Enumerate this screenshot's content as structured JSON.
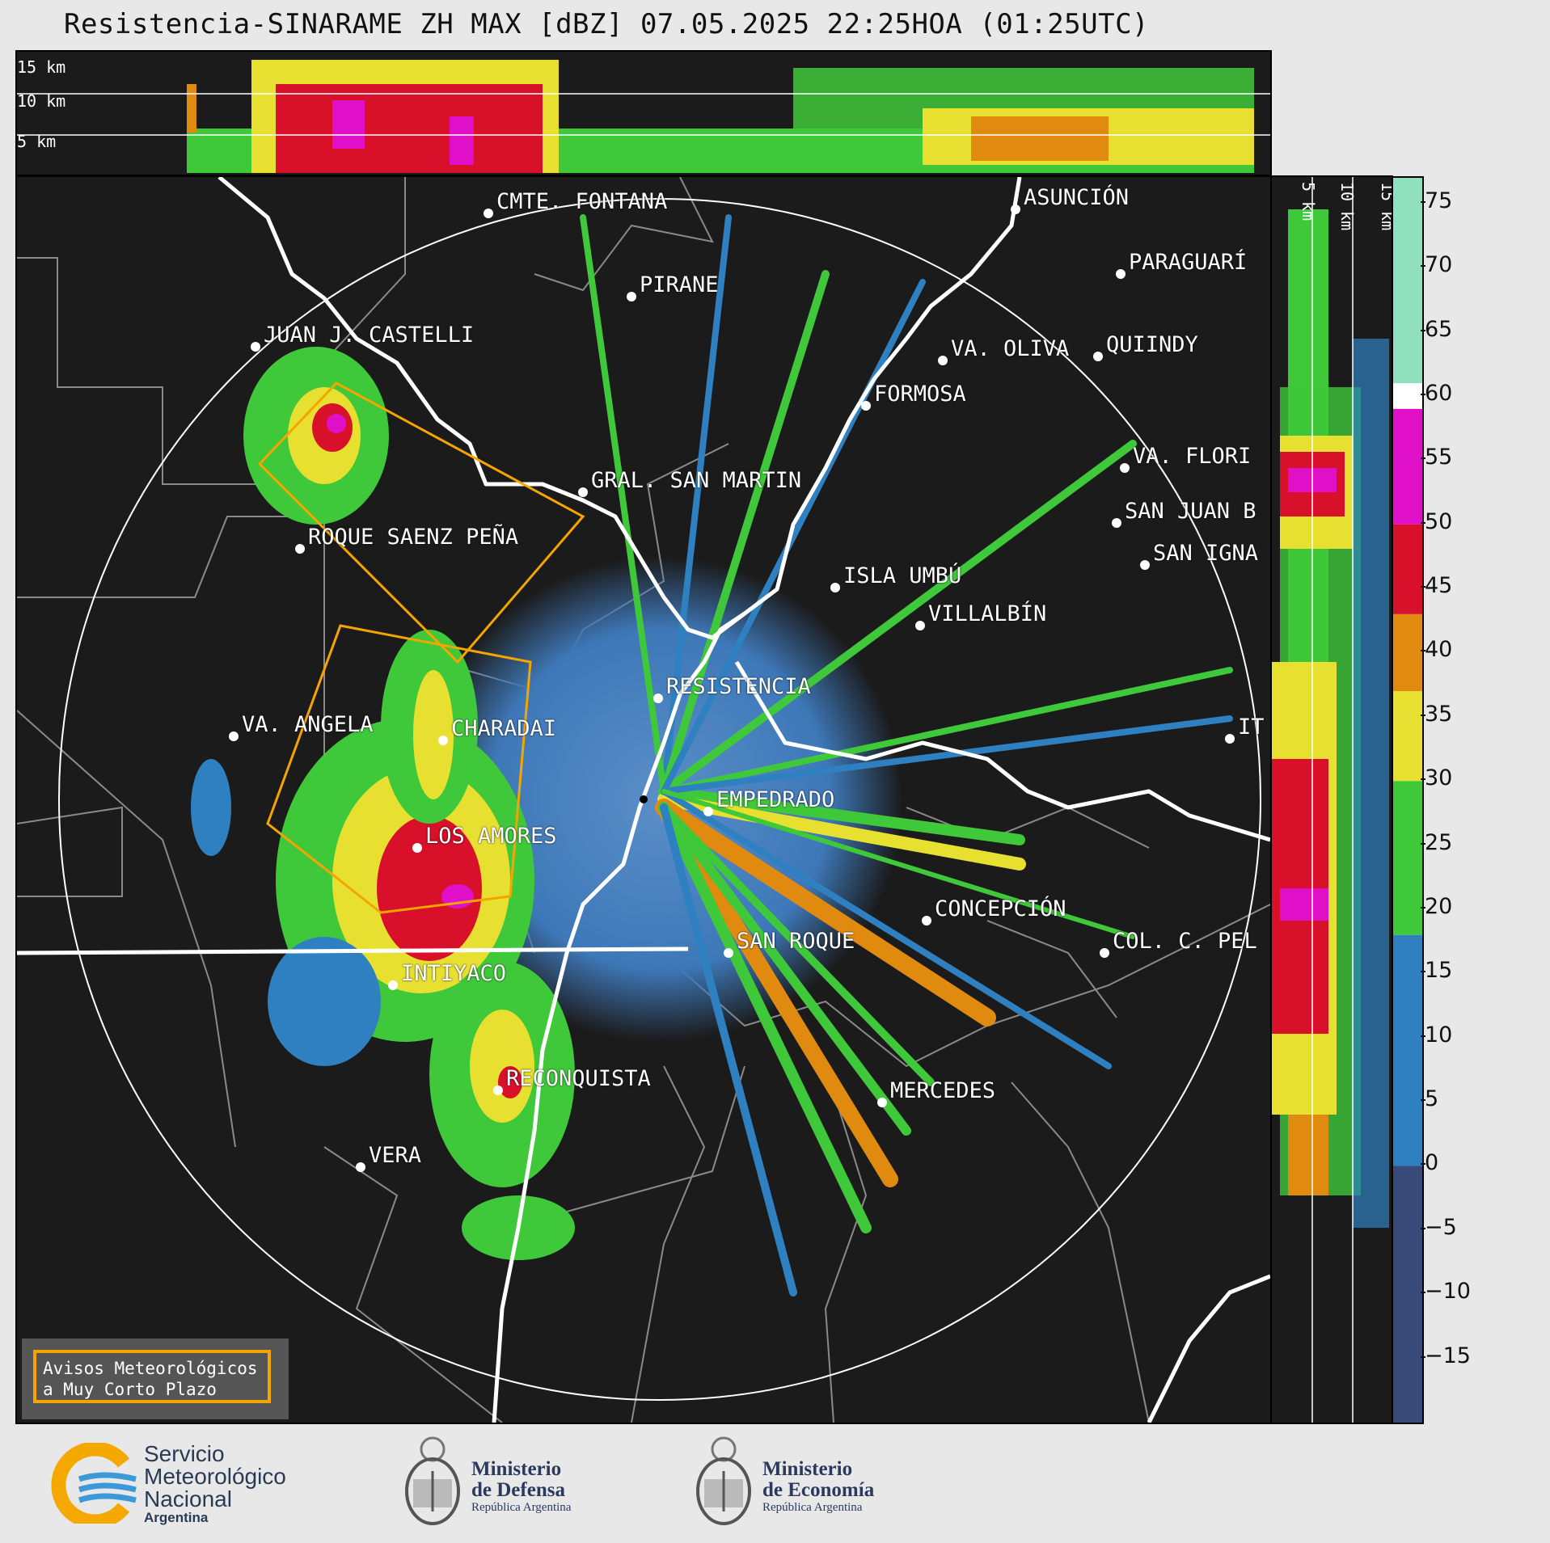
{
  "title": "Resistencia-SINARAME ZH MAX [dBZ] 07.05.2025 22:25HOA (01:25UTC)",
  "profile_top": {
    "height_labels": [
      "15 km",
      "10 km",
      "5 km"
    ]
  },
  "profile_right": {
    "height_labels": [
      "5 km",
      "10 km",
      "15 km"
    ]
  },
  "cities": [
    {
      "name": "CMTE. FONTANA"
    },
    {
      "name": "ASUNCIÓN"
    },
    {
      "name": "PARAGUARÍ"
    },
    {
      "name": "PIRANE"
    },
    {
      "name": "JUAN J. CASTELLI"
    },
    {
      "name": "VA. OLIVA"
    },
    {
      "name": "QUIINDY"
    },
    {
      "name": "FORMOSA"
    },
    {
      "name": "VA. FLORI"
    },
    {
      "name": "GRAL. SAN MARTIN"
    },
    {
      "name": "SAN JUAN B"
    },
    {
      "name": "ROQUE SAENZ PEÑA"
    },
    {
      "name": "SAN IGNA"
    },
    {
      "name": "ISLA UMBÚ"
    },
    {
      "name": "VILLALBÍN"
    },
    {
      "name": "RESISTENCIA"
    },
    {
      "name": "VA. ANGELA"
    },
    {
      "name": "CHARADAI"
    },
    {
      "name": "IT"
    },
    {
      "name": "EMPEDRADO"
    },
    {
      "name": "LOS AMORES"
    },
    {
      "name": "CONCEPCIÓN"
    },
    {
      "name": "SAN ROQUE"
    },
    {
      "name": "COL. C. PEL"
    },
    {
      "name": "INTIYACO"
    },
    {
      "name": "RECONQUISTA"
    },
    {
      "name": "MERCEDES"
    },
    {
      "name": "VERA"
    }
  ],
  "legend_box": {
    "line1": "Avisos Meteorológicos",
    "line2": "a Muy Corto Plazo",
    "border_color": "#f5a500"
  },
  "colorbar": {
    "unit": "dBZ",
    "ticks": [
      75,
      70,
      65,
      60,
      55,
      50,
      45,
      40,
      35,
      30,
      25,
      20,
      15,
      10,
      5,
      0,
      -5,
      -10,
      -15
    ],
    "tick_labels": [
      "75",
      "70",
      "65",
      "60",
      "55",
      "50",
      "45",
      "40",
      "35",
      "30",
      "25",
      "20",
      "15",
      "10",
      "5",
      "0",
      "−5",
      "−10",
      "−15"
    ],
    "range": [
      -20,
      77
    ],
    "bands": [
      {
        "from": -20,
        "to": 0,
        "color": "#3a4a78"
      },
      {
        "from": 0,
        "to": 18,
        "color": "#2f80c0"
      },
      {
        "from": 18,
        "to": 30,
        "color": "#3fc83a"
      },
      {
        "from": 30,
        "to": 37,
        "color": "#e8e030"
      },
      {
        "from": 37,
        "to": 43,
        "color": "#e08a10"
      },
      {
        "from": 43,
        "to": 50,
        "color": "#d8102a"
      },
      {
        "from": 50,
        "to": 59,
        "color": "#e010c8"
      },
      {
        "from": 59,
        "to": 61,
        "color": "#ffffff"
      },
      {
        "from": 61,
        "to": 77,
        "color": "#90e0c0"
      }
    ]
  },
  "footer": {
    "smn_line1": "Servicio",
    "smn_line2": "Meteorológico",
    "smn_line3": "Nacional",
    "smn_line4": "Argentina",
    "defensa_line1": "Ministerio",
    "defensa_line2": "de Defensa",
    "defensa_sub": "República Argentina",
    "economia_line1": "Ministerio",
    "economia_line2": "de Economía",
    "economia_sub": "República Argentina"
  },
  "colors": {
    "warning": "#f5a500",
    "border": "#ffffff",
    "background": "#1b1b1b"
  }
}
